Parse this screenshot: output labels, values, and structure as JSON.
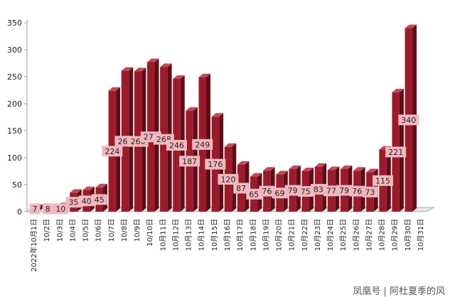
{
  "chart_data": {
    "type": "bar",
    "title": "",
    "xlabel": "",
    "ylabel": "",
    "ylim": [
      0,
      350
    ],
    "yticks": [
      0,
      50,
      100,
      150,
      200,
      250,
      300,
      350
    ],
    "categories": [
      "2022年10月1日",
      "10/2日",
      "10/3日",
      "10/4日",
      "10/5日",
      "10/6日",
      "10/7日",
      "10/8日",
      "10/9日",
      "10/10日",
      "10月11日",
      "10月12日",
      "10月13日",
      "10月14日",
      "10月15日",
      "10月16日",
      "10月17日",
      "10月18日",
      "10月19日",
      "10月20日",
      "10月21日",
      "10月22日",
      "10月23日",
      "10月24日",
      "10月25日",
      "10月26日",
      "10月27日",
      "10月28日",
      "10月29日",
      "10月30日",
      "10月31日"
    ],
    "values": [
      7,
      8,
      10,
      35,
      40,
      45,
      224,
      261,
      260,
      277,
      268,
      246,
      187,
      249,
      176,
      120,
      87,
      65,
      76,
      69,
      79,
      75,
      83,
      77,
      79,
      76,
      73,
      115,
      221,
      340,
      null
    ],
    "grid": false,
    "legend": "none",
    "colors": {
      "bar_front": "#9b1b2a",
      "bar_side": "#5e0d18",
      "bar_top": "#c34a58",
      "label_bg": "#f2b8bf",
      "axis": "#9a9a9a",
      "text": "#222222"
    }
  },
  "watermark": "凤凰号 | 阿杜夏季的风"
}
